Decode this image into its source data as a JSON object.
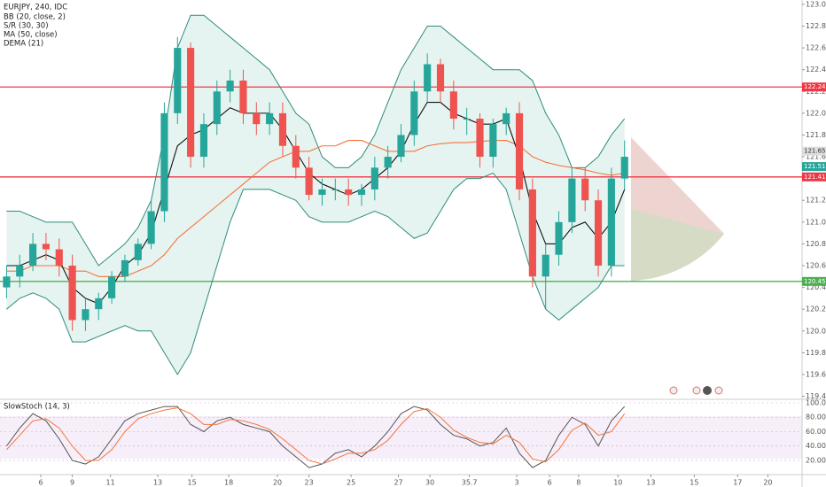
{
  "chart_data": {
    "type": "candlestick",
    "title": "EURJPY, 240, IDC",
    "indicators": [
      "BB (20, close, 2)",
      "S/R (30, 30)",
      "MA (50, close)",
      "DEMA (21)"
    ],
    "oscillator_title": "SlowStoch (14, 3)",
    "xlim": [
      0,
      61
    ],
    "xticks": [
      {
        "value": 3.1,
        "label": "6"
      },
      {
        "value": 5.5,
        "label": "9"
      },
      {
        "value": 8.4,
        "label": "11"
      },
      {
        "value": 12,
        "label": "13"
      },
      {
        "value": 14.6,
        "label": "15"
      },
      {
        "value": 17.4,
        "label": "18"
      },
      {
        "value": 21.1,
        "label": "20"
      },
      {
        "value": 23.5,
        "label": "23"
      },
      {
        "value": 26.7,
        "label": "25"
      },
      {
        "value": 30.3,
        "label": "27"
      },
      {
        "value": 32.7,
        "label": "30"
      },
      35.7,
      {
        "value": 39.3,
        "label": "3"
      },
      {
        "value": 41.8,
        "label": "6"
      },
      {
        "value": 44,
        "label": "8"
      },
      {
        "value": 47,
        "label": "10"
      },
      {
        "value": 49.5,
        "label": "13"
      },
      {
        "value": 52.8,
        "label": "15"
      },
      {
        "value": 56.1,
        "label": "17"
      },
      {
        "value": 58.4,
        "label": "20"
      }
    ],
    "ylim": [
      119.38,
      123.04
    ],
    "yticks": [
      {
        "value": 119.4,
        "label": "119.400"
      },
      {
        "value": 119.6,
        "label": "119.600"
      },
      {
        "value": 119.8,
        "label": "119.800"
      },
      {
        "value": 120,
        "label": "120.000"
      },
      {
        "value": 120.2,
        "label": "120.200"
      },
      {
        "value": 120.4,
        "label": "120.400"
      },
      {
        "value": 120.6,
        "label": "120.600"
      },
      {
        "value": 120.8,
        "label": "120.800"
      },
      {
        "value": 121,
        "label": "121.000"
      },
      {
        "value": 121.2,
        "label": "121.200"
      },
      {
        "value": 121.4,
        "label": "121.400"
      },
      {
        "value": 121.6,
        "label": "121.600"
      },
      {
        "value": 121.8,
        "label": "121.800"
      },
      {
        "value": 122,
        "label": "122.000"
      },
      {
        "value": 122.2,
        "label": "122.200"
      },
      {
        "value": 122.4,
        "label": "122.400"
      },
      {
        "value": 122.6,
        "label": "122.600"
      },
      {
        "value": 122.8,
        "label": "122.800"
      },
      {
        "value": 123,
        "label": "123.000"
      }
    ],
    "levels": [
      {
        "value": 122.241,
        "color": "#f23645"
      },
      {
        "value": 121.415,
        "color": "#f23645"
      },
      {
        "value": 120.455,
        "color": "#4caf50"
      }
    ],
    "price_labels": [
      121.652,
      121.51
    ],
    "up_color": "#26a69a",
    "down_color": "#ef5350",
    "open": [
      120.4,
      120.5,
      120.6,
      120.8,
      120.75,
      120.6,
      120.1,
      120.2,
      120.3,
      120.5,
      120.65,
      120.8,
      121.1,
      122.0,
      122.6,
      121.6,
      121.9,
      122.2,
      122.3,
      122.0,
      121.9,
      122.0,
      121.7,
      121.5,
      121.25,
      121.3,
      121.3,
      121.25,
      121.3,
      121.5,
      121.6,
      121.8,
      122.2,
      122.45,
      122.2,
      121.95,
      121.95,
      121.6,
      121.9,
      122.0,
      121.3,
      120.5,
      120.7,
      121.0,
      121.4,
      121.2,
      120.6,
      121.4
    ],
    "high": [
      120.6,
      120.7,
      120.9,
      120.9,
      120.85,
      120.7,
      120.3,
      120.35,
      120.55,
      120.7,
      120.85,
      121.2,
      122.1,
      122.7,
      122.65,
      122.0,
      122.3,
      122.4,
      122.4,
      122.1,
      122.1,
      122.1,
      121.8,
      121.6,
      121.4,
      121.4,
      121.4,
      121.35,
      121.6,
      121.7,
      121.9,
      122.3,
      122.55,
      122.5,
      122.3,
      122.05,
      122.0,
      121.95,
      122.05,
      122.1,
      121.4,
      120.8,
      121.1,
      121.5,
      121.5,
      121.3,
      121.5,
      121.75
    ],
    "low": [
      120.3,
      120.4,
      120.55,
      120.65,
      120.5,
      120.0,
      120.0,
      120.1,
      120.25,
      120.45,
      120.6,
      120.75,
      121.0,
      121.9,
      121.5,
      121.5,
      121.8,
      122.1,
      121.9,
      121.8,
      121.8,
      121.6,
      121.4,
      121.2,
      121.15,
      121.2,
      121.15,
      121.15,
      121.2,
      121.4,
      121.55,
      121.7,
      122.1,
      122.1,
      121.85,
      121.8,
      121.5,
      121.5,
      121.8,
      121.2,
      120.4,
      120.2,
      120.6,
      120.9,
      121.1,
      120.5,
      120.5,
      121.3
    ],
    "close": [
      120.5,
      120.6,
      120.8,
      120.75,
      120.6,
      120.1,
      120.2,
      120.3,
      120.5,
      120.65,
      120.8,
      121.1,
      122.0,
      122.6,
      121.6,
      121.9,
      122.2,
      122.3,
      122.0,
      121.9,
      122.0,
      121.7,
      121.5,
      121.25,
      121.3,
      121.3,
      121.25,
      121.3,
      121.5,
      121.6,
      121.8,
      122.2,
      122.45,
      122.2,
      121.95,
      121.95,
      121.6,
      121.9,
      122.0,
      121.3,
      120.5,
      120.7,
      121.0,
      121.4,
      121.2,
      120.6,
      121.4,
      121.6
    ],
    "overlays": [
      {
        "color": "#2e8b7a",
        "values": [
          121.1,
          121.1,
          121.05,
          121.0,
          121.0,
          121.0,
          120.8,
          120.6,
          120.7,
          120.8,
          120.95,
          121.2,
          121.8,
          122.6,
          122.9,
          122.9,
          122.8,
          122.7,
          122.6,
          122.5,
          122.4,
          122.2,
          122.0,
          121.9,
          121.6,
          121.5,
          121.5,
          121.6,
          121.8,
          122.1,
          122.4,
          122.6,
          122.8,
          122.8,
          122.7,
          122.6,
          122.5,
          122.4,
          122.4,
          122.4,
          122.3,
          122.0,
          121.8,
          121.5,
          121.5,
          121.6,
          121.8,
          121.95
        ]
      },
      {
        "color": "#2e8b7a",
        "values": [
          120.2,
          120.3,
          120.35,
          120.3,
          120.2,
          119.9,
          119.9,
          119.95,
          120.0,
          120.05,
          120.0,
          120.0,
          119.8,
          119.6,
          119.8,
          120.2,
          120.6,
          121.0,
          121.3,
          121.3,
          121.3,
          121.25,
          121.2,
          121.05,
          121.0,
          121.0,
          121.0,
          121.05,
          121.1,
          121.05,
          120.95,
          120.85,
          120.9,
          121.1,
          121.3,
          121.4,
          121.4,
          121.45,
          121.3,
          120.9,
          120.5,
          120.2,
          120.1,
          120.2,
          120.3,
          120.4,
          120.6,
          120.6
        ]
      },
      {
        "color": "#f4743b",
        "values": [
          120.55,
          120.55,
          120.6,
          120.6,
          120.6,
          120.55,
          120.55,
          120.5,
          120.5,
          120.5,
          120.55,
          120.6,
          120.7,
          120.85,
          120.95,
          121.05,
          121.15,
          121.25,
          121.35,
          121.45,
          121.55,
          121.6,
          121.65,
          121.65,
          121.7,
          121.7,
          121.75,
          121.75,
          121.7,
          121.65,
          121.65,
          121.65,
          121.7,
          121.72,
          121.73,
          121.73,
          121.74,
          121.75,
          121.75,
          121.7,
          121.6,
          121.55,
          121.52,
          121.5,
          121.48,
          121.45,
          121.43,
          121.45
        ]
      },
      {
        "color": "#111111",
        "values": [
          120.6,
          120.6,
          120.65,
          120.7,
          120.65,
          120.4,
          120.3,
          120.25,
          120.4,
          120.6,
          120.7,
          120.9,
          121.3,
          121.7,
          121.8,
          121.85,
          121.95,
          122.05,
          122.0,
          122.0,
          122.0,
          121.85,
          121.65,
          121.45,
          121.35,
          121.3,
          121.25,
          121.3,
          121.4,
          121.5,
          121.65,
          121.9,
          122.1,
          122.1,
          122.0,
          121.95,
          121.9,
          121.9,
          121.95,
          121.6,
          121.1,
          120.8,
          120.8,
          120.95,
          121.0,
          120.85,
          121.0,
          121.3
        ]
      }
    ],
    "band_color": "#e6f4f1",
    "stoch": {
      "ylim": [
        1.5,
        103.7
      ],
      "yticks": [
        {
          "value": 20,
          "label": "20.00"
        },
        {
          "value": 40,
          "label": "40.00"
        },
        {
          "value": 60,
          "label": "60.00"
        },
        {
          "value": 80,
          "label": "80.00"
        },
        {
          "value": 100,
          "label": "100.00"
        }
      ],
      "series": [
        {
          "color": "#555555",
          "values": [
            40,
            65,
            85,
            75,
            50,
            20,
            15,
            25,
            50,
            75,
            85,
            90,
            95,
            95,
            70,
            60,
            75,
            80,
            70,
            65,
            60,
            40,
            25,
            10,
            15,
            30,
            35,
            25,
            40,
            60,
            85,
            95,
            90,
            70,
            55,
            50,
            40,
            45,
            65,
            30,
            10,
            20,
            55,
            80,
            70,
            40,
            75,
            95
          ]
        },
        {
          "color": "#f4743b",
          "values": [
            35,
            55,
            75,
            78,
            65,
            40,
            20,
            20,
            35,
            60,
            78,
            85,
            90,
            93,
            85,
            70,
            70,
            77,
            75,
            70,
            63,
            50,
            35,
            20,
            15,
            22,
            30,
            30,
            35,
            48,
            70,
            88,
            92,
            80,
            62,
            52,
            45,
            43,
            55,
            45,
            22,
            18,
            35,
            62,
            72,
            55,
            60,
            85
          ]
        }
      ]
    }
  }
}
